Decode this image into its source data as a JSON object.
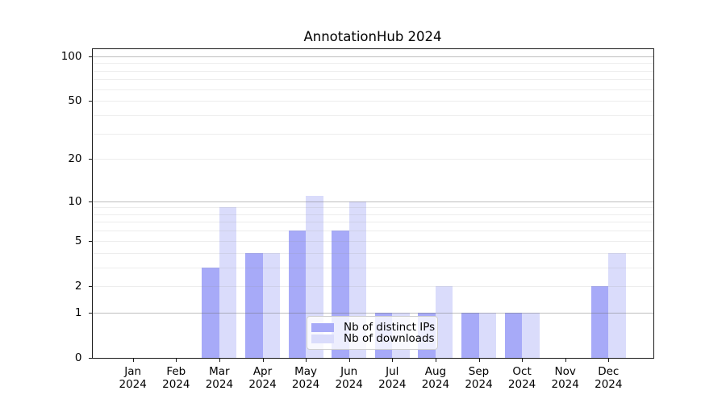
{
  "chart_data": {
    "type": "bar",
    "title": "AnnotationHub 2024",
    "categories": [
      "Jan",
      "Feb",
      "Mar",
      "Apr",
      "May",
      "Jun",
      "Jul",
      "Aug",
      "Sep",
      "Oct",
      "Nov",
      "Dec"
    ],
    "year_label": "2024",
    "series": [
      {
        "name": "Nb of distinct IPs",
        "color": "#a7aaf8",
        "values": [
          0,
          0,
          3,
          4,
          6,
          6,
          1,
          1,
          1,
          1,
          0,
          2
        ]
      },
      {
        "name": "Nb of downloads",
        "color": "#dadcfb",
        "values": [
          0,
          0,
          9,
          4,
          11,
          10,
          1,
          2,
          1,
          1,
          0,
          4
        ]
      }
    ],
    "y_axis": {
      "scale": "log10(1+value)",
      "tick_values": [
        0,
        1,
        2,
        5,
        10,
        20,
        50,
        100
      ],
      "major_gridlines": [
        1,
        10,
        100
      ],
      "minor_gridlines": [
        2,
        3,
        4,
        5,
        6,
        7,
        8,
        9,
        20,
        30,
        40,
        50,
        60,
        70,
        80,
        90
      ],
      "ylim": [
        0,
        110
      ]
    },
    "x_axis": {
      "label": "",
      "tick_format": "month newline year"
    },
    "grid": true,
    "legend_position": "inside lower center",
    "colors": {
      "background": "#ffffff",
      "spine": "#1a1a1a",
      "grid_major": "#bdbdbd",
      "grid_minor": "#e9e9e9",
      "text": "#000000",
      "legend_border": "#cfcfcf"
    }
  }
}
